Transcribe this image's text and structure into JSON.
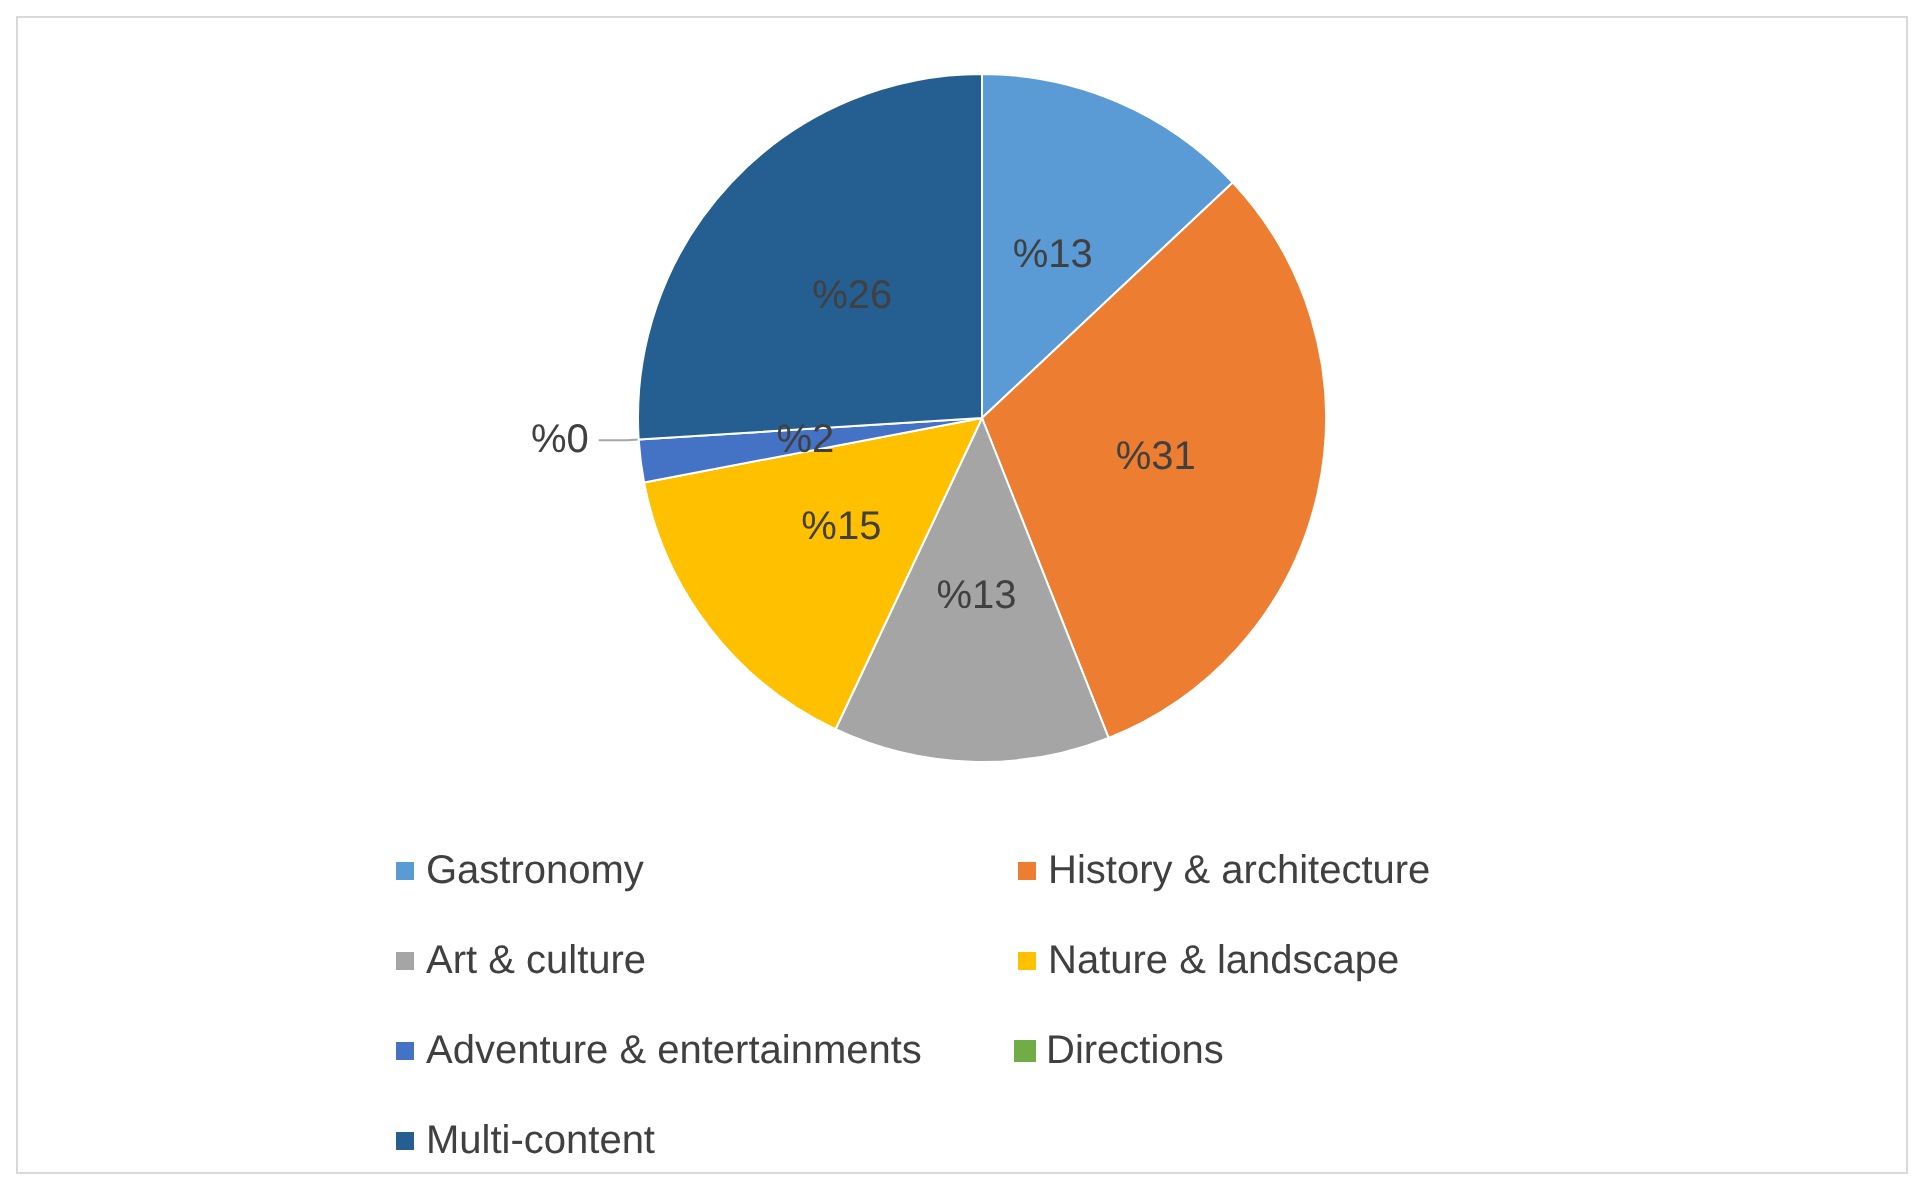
{
  "chart_data": {
    "type": "pie",
    "categories": [
      "Gastronomy",
      "History & architecture",
      "Art & culture",
      "Nature & landscape",
      "Adventure & entertainments",
      "Directions",
      "Multi-content"
    ],
    "values": [
      13,
      31,
      13,
      15,
      2,
      0,
      26
    ],
    "value_labels": [
      "%13",
      "%31",
      "%13",
      "%15",
      "%2",
      "%0",
      "%26"
    ],
    "colors": [
      "#5b9bd5",
      "#ed7d31",
      "#a5a5a5",
      "#ffc000",
      "#4472c4",
      "#70ad47",
      "#255e91"
    ],
    "legend": "bottom"
  }
}
